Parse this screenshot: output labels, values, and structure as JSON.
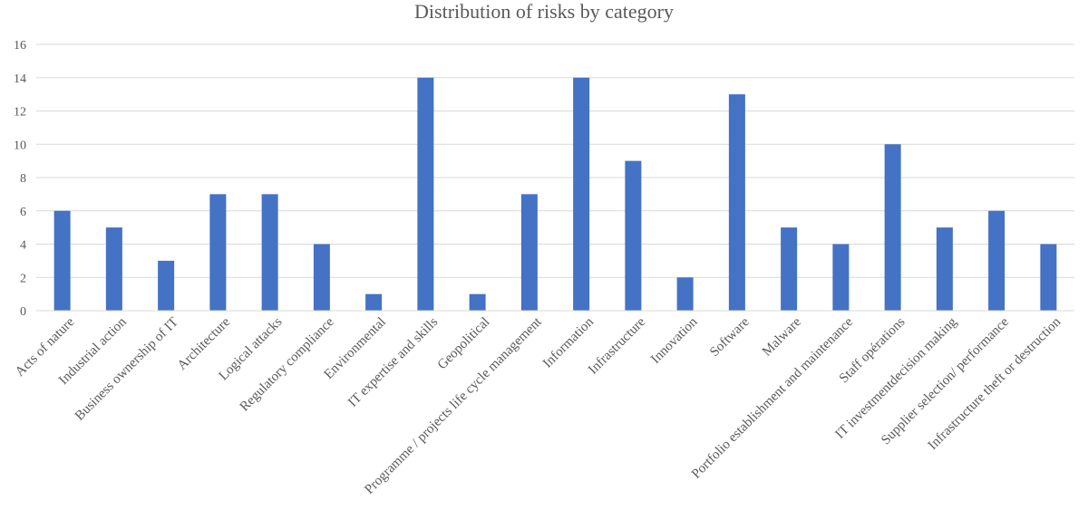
{
  "chart_data": {
    "type": "bar",
    "title": "Distribution of risks by category",
    "xlabel": "",
    "ylabel": "",
    "ylim": [
      0,
      16
    ],
    "yticks": [
      0,
      2,
      4,
      6,
      8,
      10,
      12,
      14,
      16
    ],
    "grid": true,
    "legend": "none",
    "bar_color": "#4472C4",
    "categories": [
      "Acts of nature",
      "Industrial action",
      "Business ownership of IT",
      "Architecture",
      "Logical attacks",
      "Regulatory compliance",
      "Environmental",
      "IT expertise and skills",
      "Geopolitical",
      "Programme / projects life cycle management",
      "Information",
      "Infrastructure",
      "Innovation",
      "Software",
      "Malware",
      "Portfolio establishment and maintenance",
      "Staff opérations",
      "IT investmentdecision making",
      "Supplier selection/ performance",
      "Infrastructure theft or destruction"
    ],
    "values": [
      6,
      5,
      3,
      7,
      7,
      4,
      1,
      14,
      1,
      7,
      14,
      9,
      2,
      13,
      5,
      4,
      10,
      5,
      6,
      4
    ]
  }
}
